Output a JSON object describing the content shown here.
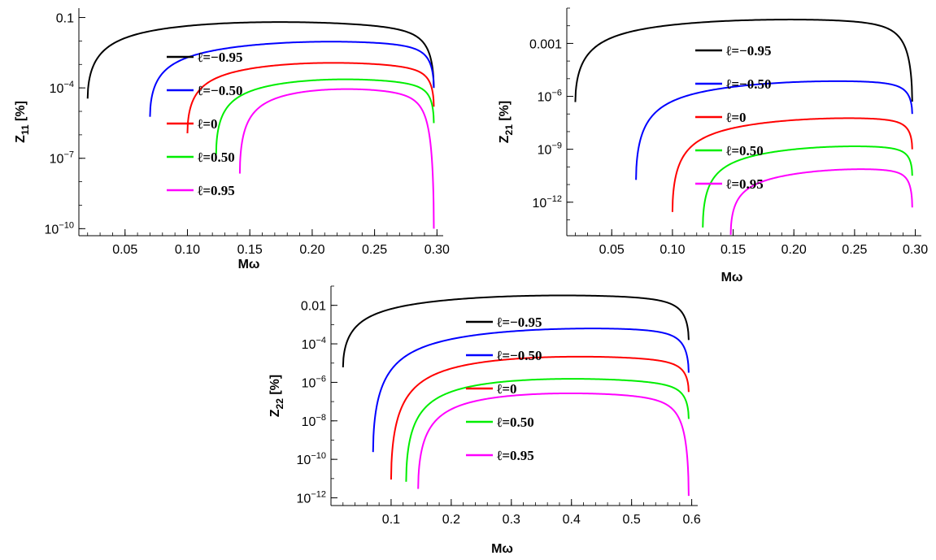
{
  "colors": {
    "l_m095": "#000000",
    "l_m050": "#0000ff",
    "l_0": "#ff0000",
    "l_050": "#00ee00",
    "l_095": "#ff00ff",
    "axis": "#000000"
  },
  "chart_data": [
    {
      "type": "line",
      "yscale": "log",
      "xlabel": "Mω",
      "ylabel": "Z11 [%]",
      "ylabel_main": "Z",
      "ylabel_sub": "11",
      "ylabel_rest": " [%]",
      "xlim": [
        0.013,
        0.305
      ],
      "ylim_log10": [
        -10.3,
        -0.6
      ],
      "xticks": [
        0.05,
        0.1,
        0.15,
        0.2,
        0.25,
        0.3
      ],
      "xtick_labels": [
        "0.05",
        "0.10",
        "0.15",
        "0.20",
        "0.25",
        "0.30"
      ],
      "yticks_log10": [
        -1,
        -4,
        -7,
        -10
      ],
      "ytick_labels": [
        {
          "base": "0.1",
          "exp": ""
        },
        {
          "base": "10",
          "exp": "−4"
        },
        {
          "base": "10",
          "exp": "−7"
        },
        {
          "base": "10",
          "exp": "−10"
        }
      ],
      "legend": [
        "ℓ=−0.95",
        "ℓ=−0.50",
        "ℓ=0",
        "ℓ=0.50",
        "ℓ=0.95"
      ],
      "series": [
        {
          "name": "ℓ=−0.95",
          "color": "#000000",
          "x0": 0.02,
          "x1": 0.2975,
          "ystart": -4.1,
          "ypeak": -1.15,
          "xpeak": 0.16,
          "yend": -4.0
        },
        {
          "name": "ℓ=−0.50",
          "color": "#0000ff",
          "x0": 0.07,
          "x1": 0.2975,
          "ystart": -4.7,
          "ypeak": -2.0,
          "xpeak": 0.21,
          "yend": -4.0
        },
        {
          "name": "ℓ=0",
          "color": "#ff0000",
          "x0": 0.1,
          "x1": 0.2975,
          "ystart": -5.5,
          "ypeak": -2.9,
          "xpeak": 0.21,
          "yend": -4.8
        },
        {
          "name": "ℓ=0.50",
          "color": "#00ee00",
          "x0": 0.123,
          "x1": 0.2975,
          "ystart": -6.4,
          "ypeak": -3.6,
          "xpeak": 0.22,
          "yend": -5.5
        },
        {
          "name": "ℓ=0.95",
          "color": "#ff00ff",
          "x0": 0.142,
          "x1": 0.2975,
          "ystart": -7.3,
          "ypeak": -4.0,
          "xpeak": 0.22,
          "yend": -10.0
        }
      ]
    },
    {
      "type": "line",
      "yscale": "log",
      "xlabel": "Mω",
      "ylabel": "Z21 [%]",
      "ylabel_main": "Z",
      "ylabel_sub": "21",
      "ylabel_rest": " [%]",
      "xlim": [
        0.013,
        0.305
      ],
      "ylim_log10": [
        -13.9,
        -1.0
      ],
      "xticks": [
        0.05,
        0.1,
        0.15,
        0.2,
        0.25,
        0.3
      ],
      "xtick_labels": [
        "0.05",
        "0.10",
        "0.15",
        "0.20",
        "0.25",
        "0.30"
      ],
      "yticks_log10": [
        -3,
        -6,
        -9,
        -12
      ],
      "ytick_labels": [
        {
          "base": "0.001",
          "exp": ""
        },
        {
          "base": "10",
          "exp": "−6"
        },
        {
          "base": "10",
          "exp": "−9"
        },
        {
          "base": "10",
          "exp": "−12"
        }
      ],
      "legend": [
        "ℓ=−0.95",
        "ℓ=−0.50",
        "ℓ=0",
        "ℓ=0.50",
        "ℓ=0.95"
      ],
      "series": [
        {
          "name": "ℓ=−0.95",
          "color": "#000000",
          "x0": 0.02,
          "x1": 0.2975,
          "ystart": -5.8,
          "ypeak": -1.6,
          "xpeak": 0.19,
          "yend": -6.3
        },
        {
          "name": "ℓ=−0.50",
          "color": "#0000ff",
          "x0": 0.07,
          "x1": 0.2975,
          "ystart": -10.0,
          "ypeak": -5.1,
          "xpeak": 0.235,
          "yend": -7.0
        },
        {
          "name": "ℓ=0",
          "color": "#ff0000",
          "x0": 0.1,
          "x1": 0.2975,
          "ystart": -11.8,
          "ypeak": -7.2,
          "xpeak": 0.245,
          "yend": -9.0
        },
        {
          "name": "ℓ=0.50",
          "color": "#00ee00",
          "x0": 0.125,
          "x1": 0.2975,
          "ystart": -12.7,
          "ypeak": -8.8,
          "xpeak": 0.25,
          "yend": -10.5
        },
        {
          "name": "ℓ=0.95",
          "color": "#ff00ff",
          "x0": 0.148,
          "x1": 0.2975,
          "ystart": -13.1,
          "ypeak": -10.1,
          "xpeak": 0.257,
          "yend": -12.3
        }
      ]
    },
    {
      "type": "line",
      "yscale": "log",
      "xlabel": "Mω",
      "ylabel": "Z22 [%]",
      "ylabel_main": "Z",
      "ylabel_sub": "22",
      "ylabel_rest": " [%]",
      "xlim": [
        0.0,
        0.61
      ],
      "ylim_log10": [
        -12.4,
        -1.0
      ],
      "xticks": [
        0.1,
        0.2,
        0.3,
        0.4,
        0.5,
        0.6
      ],
      "xtick_labels": [
        "0.1",
        "0.2",
        "0.3",
        "0.4",
        "0.5",
        "0.6"
      ],
      "yticks_log10": [
        -2,
        -4,
        -6,
        -8,
        -10,
        -12
      ],
      "ytick_labels": [
        {
          "base": "0.01",
          "exp": ""
        },
        {
          "base": "10",
          "exp": "−4"
        },
        {
          "base": "10",
          "exp": "−6"
        },
        {
          "base": "10",
          "exp": "−8"
        },
        {
          "base": "10",
          "exp": "−10"
        },
        {
          "base": "10",
          "exp": "−12"
        }
      ],
      "legend": [
        "ℓ=−0.95",
        "ℓ=−0.50",
        "ℓ=0",
        "ℓ=0.50",
        "ℓ=0.95"
      ],
      "series": [
        {
          "name": "ℓ=−0.95",
          "color": "#000000",
          "x0": 0.02,
          "x1": 0.595,
          "ystart": -4.7,
          "ypeak": -1.45,
          "xpeak": 0.37,
          "yend": -3.8
        },
        {
          "name": "ℓ=−0.50",
          "color": "#0000ff",
          "x0": 0.07,
          "x1": 0.595,
          "ystart": -9.0,
          "ypeak": -3.15,
          "xpeak": 0.42,
          "yend": -5.5
        },
        {
          "name": "ℓ=0",
          "color": "#ff0000",
          "x0": 0.1,
          "x1": 0.595,
          "ystart": -10.6,
          "ypeak": -4.6,
          "xpeak": 0.38,
          "yend": -6.5
        },
        {
          "name": "ℓ=0.50",
          "color": "#00ee00",
          "x0": 0.125,
          "x1": 0.595,
          "ystart": -10.8,
          "ypeak": -5.75,
          "xpeak": 0.365,
          "yend": -7.9
        },
        {
          "name": "ℓ=0.95",
          "color": "#ff00ff",
          "x0": 0.145,
          "x1": 0.595,
          "ystart": -11.2,
          "ypeak": -6.5,
          "xpeak": 0.365,
          "yend": -11.9
        }
      ]
    }
  ]
}
